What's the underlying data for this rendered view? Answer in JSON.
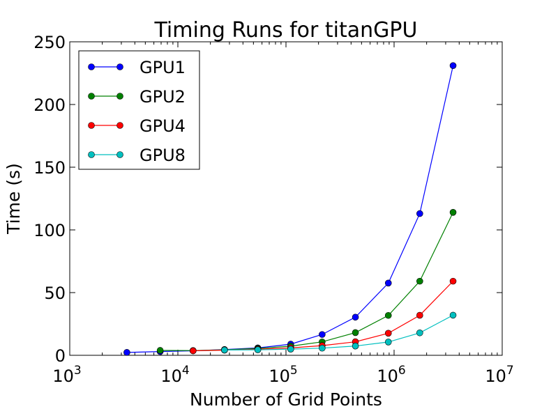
{
  "chart_data": {
    "type": "line",
    "title": "Timing Runs for titanGPU",
    "xlabel": "Number of Grid Points",
    "ylabel": "Time (s)",
    "xscale": "log",
    "xlim": [
      1000,
      10000000
    ],
    "ylim": [
      0,
      250
    ],
    "x_ticks": [
      {
        "base": "10",
        "exp": "3",
        "value": 1000
      },
      {
        "base": "10",
        "exp": "4",
        "value": 10000
      },
      {
        "base": "10",
        "exp": "5",
        "value": 100000
      },
      {
        "base": "10",
        "exp": "6",
        "value": 1000000
      },
      {
        "base": "10",
        "exp": "7",
        "value": 10000000
      }
    ],
    "y_ticks": [
      0,
      50,
      100,
      150,
      200,
      250
    ],
    "legend_position": "top-left",
    "series": [
      {
        "name": "GPU1",
        "color": "#0000ff",
        "x": [
          3375,
          6859,
          13824,
          27000,
          54872,
          110592,
          216000,
          438976,
          884736,
          1728000,
          3511808
        ],
        "y": [
          2.3,
          3.0,
          3.6,
          4.6,
          5.9,
          8.9,
          16.6,
          30.4,
          57.6,
          113.0,
          231.0
        ]
      },
      {
        "name": "GPU2",
        "color": "#008000",
        "x": [
          6859,
          13824,
          27000,
          54872,
          110592,
          216000,
          438976,
          884736,
          1728000,
          3511808
        ],
        "y": [
          3.9,
          3.8,
          4.4,
          5.5,
          7.3,
          10.7,
          18.1,
          31.8,
          59.1,
          114.0
        ]
      },
      {
        "name": "GPU4",
        "color": "#ff0000",
        "x": [
          13824,
          27000,
          54872,
          110592,
          216000,
          438976,
          884736,
          1728000,
          3511808
        ],
        "y": [
          3.6,
          4.1,
          4.9,
          5.9,
          7.7,
          10.8,
          17.6,
          31.9,
          59.1
        ]
      },
      {
        "name": "GPU8",
        "color": "#00bfbf",
        "x": [
          27000,
          54872,
          110592,
          216000,
          438976,
          884736,
          1728000,
          3511808
        ],
        "y": [
          4.2,
          4.4,
          4.9,
          5.7,
          7.4,
          10.6,
          17.9,
          32.0
        ]
      }
    ]
  }
}
